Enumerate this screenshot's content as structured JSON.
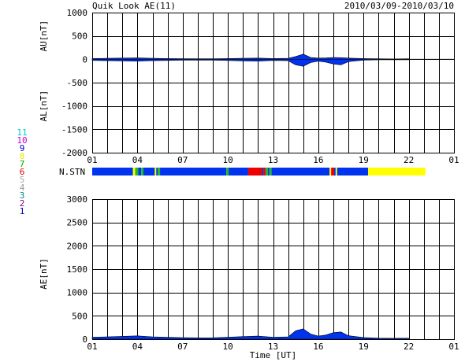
{
  "header": {
    "title": "Quik Look AE(11)",
    "date_range": "2010/03/09-2010/03/10"
  },
  "station_legend": {
    "numbers": [
      "11",
      "10",
      "9",
      "8",
      "7",
      "6",
      "5",
      "4",
      "3",
      "2",
      "1"
    ],
    "colors": [
      "#00cccc",
      "#cc00cc",
      "#0000cc",
      "#e8e800",
      "#00aa00",
      "#dd0000",
      "#aaaaaa",
      "#999999",
      "#008888",
      "#880088",
      "#0000aa"
    ]
  },
  "nstn_label": "N.STN",
  "colors": {
    "main": "#0033ee",
    "red": "#ee0000",
    "yellow": "#ffff00",
    "green": "#22bb22",
    "trace": "#000000"
  },
  "chart_data": [
    {
      "type": "area",
      "name": "AU/AL",
      "ylabel_top": "AU[nT]",
      "ylabel_bottom": "AL[nT]",
      "ylim": [
        -2000,
        1000
      ],
      "yticks": [
        "1000",
        "500",
        "0",
        "-500",
        "-1000",
        "-1500",
        "-2000"
      ],
      "ytick_values": [
        1000,
        500,
        0,
        -500,
        -1000,
        -1500,
        -2000
      ],
      "xlim": [
        1,
        25
      ],
      "xticks": [
        "01",
        "04",
        "07",
        "10",
        "13",
        "16",
        "19",
        "22",
        "01"
      ],
      "xtick_values": [
        1,
        4,
        7,
        10,
        13,
        16,
        19,
        22,
        25
      ],
      "grid": true,
      "data_end_hour": 22.0,
      "au": [
        [
          1,
          15
        ],
        [
          2,
          20
        ],
        [
          3,
          25
        ],
        [
          4,
          30
        ],
        [
          5,
          20
        ],
        [
          6,
          15
        ],
        [
          7,
          12
        ],
        [
          8,
          10
        ],
        [
          9,
          10
        ],
        [
          10,
          15
        ],
        [
          11,
          20
        ],
        [
          12,
          25
        ],
        [
          13,
          15
        ],
        [
          14,
          20
        ],
        [
          14.5,
          60
        ],
        [
          15,
          110
        ],
        [
          15.5,
          40
        ],
        [
          16,
          25
        ],
        [
          16.5,
          30
        ],
        [
          17,
          40
        ],
        [
          17.5,
          35
        ],
        [
          18,
          25
        ],
        [
          19,
          15
        ],
        [
          20,
          10
        ],
        [
          21,
          8
        ],
        [
          22,
          10
        ]
      ],
      "al": [
        [
          1,
          -25
        ],
        [
          2,
          -30
        ],
        [
          3,
          -35
        ],
        [
          4,
          -40
        ],
        [
          5,
          -30
        ],
        [
          6,
          -25
        ],
        [
          7,
          -20
        ],
        [
          8,
          -18
        ],
        [
          9,
          -20
        ],
        [
          10,
          -25
        ],
        [
          11,
          -35
        ],
        [
          12,
          -40
        ],
        [
          13,
          -25
        ],
        [
          14,
          -30
        ],
        [
          14.5,
          -120
        ],
        [
          15,
          -150
        ],
        [
          15.5,
          -70
        ],
        [
          16,
          -40
        ],
        [
          16.5,
          -60
        ],
        [
          17,
          -100
        ],
        [
          17.5,
          -120
        ],
        [
          18,
          -50
        ],
        [
          19,
          -20
        ],
        [
          20,
          -12
        ],
        [
          21,
          -10
        ],
        [
          22,
          -10
        ]
      ]
    },
    {
      "type": "area",
      "name": "AE",
      "ylabel": "AE[nT]",
      "ylim": [
        0,
        3000
      ],
      "yticks": [
        "3000",
        "2500",
        "2000",
        "1500",
        "1000",
        "500",
        "0"
      ],
      "ytick_values": [
        3000,
        2500,
        2000,
        1500,
        1000,
        500,
        0
      ],
      "xlim": [
        1,
        25
      ],
      "xticks": [
        "01",
        "04",
        "07",
        "10",
        "13",
        "16",
        "19",
        "22",
        "01"
      ],
      "xtick_values": [
        1,
        4,
        7,
        10,
        13,
        16,
        19,
        22,
        25
      ],
      "xlabel": "Time [UT]",
      "grid": true,
      "values": [
        [
          1,
          40
        ],
        [
          2,
          50
        ],
        [
          3,
          60
        ],
        [
          4,
          70
        ],
        [
          5,
          50
        ],
        [
          6,
          40
        ],
        [
          7,
          32
        ],
        [
          8,
          28
        ],
        [
          9,
          30
        ],
        [
          10,
          40
        ],
        [
          11,
          55
        ],
        [
          12,
          65
        ],
        [
          13,
          40
        ],
        [
          14,
          50
        ],
        [
          14.5,
          180
        ],
        [
          15,
          220
        ],
        [
          15.5,
          110
        ],
        [
          16,
          65
        ],
        [
          16.5,
          90
        ],
        [
          17,
          140
        ],
        [
          17.5,
          155
        ],
        [
          18,
          75
        ],
        [
          19,
          35
        ],
        [
          20,
          22
        ],
        [
          21,
          18
        ],
        [
          22,
          20
        ]
      ]
    }
  ],
  "station_bar": {
    "xlim": [
      1,
      25
    ],
    "segments": [
      {
        "start": 1,
        "end": 3.7,
        "color": "main"
      },
      {
        "start": 3.7,
        "end": 3.85,
        "color": "yellow"
      },
      {
        "start": 3.85,
        "end": 4.05,
        "color": "green"
      },
      {
        "start": 4.05,
        "end": 4.25,
        "color": "main"
      },
      {
        "start": 4.25,
        "end": 4.4,
        "color": "green"
      },
      {
        "start": 4.4,
        "end": 5.15,
        "color": "main"
      },
      {
        "start": 5.15,
        "end": 5.25,
        "color": "yellow"
      },
      {
        "start": 5.25,
        "end": 5.35,
        "color": "main"
      },
      {
        "start": 5.35,
        "end": 5.5,
        "color": "green"
      },
      {
        "start": 5.5,
        "end": 9.9,
        "color": "main"
      },
      {
        "start": 9.9,
        "end": 10.05,
        "color": "green"
      },
      {
        "start": 10.05,
        "end": 11.35,
        "color": "main"
      },
      {
        "start": 11.35,
        "end": 12.25,
        "color": "red"
      },
      {
        "start": 12.25,
        "end": 12.35,
        "color": "main"
      },
      {
        "start": 12.35,
        "end": 12.5,
        "color": "red"
      },
      {
        "start": 12.5,
        "end": 12.65,
        "color": "green"
      },
      {
        "start": 12.65,
        "end": 12.75,
        "color": "main"
      },
      {
        "start": 12.75,
        "end": 12.9,
        "color": "green"
      },
      {
        "start": 12.9,
        "end": 16.75,
        "color": "main"
      },
      {
        "start": 16.75,
        "end": 16.85,
        "color": "yellow"
      },
      {
        "start": 16.85,
        "end": 17.05,
        "color": "red"
      },
      {
        "start": 17.05,
        "end": 17.15,
        "color": "main"
      },
      {
        "start": 17.15,
        "end": 17.25,
        "color": "yellow"
      },
      {
        "start": 17.25,
        "end": 19.3,
        "color": "main"
      },
      {
        "start": 19.3,
        "end": 23.1,
        "color": "yellow"
      }
    ]
  }
}
